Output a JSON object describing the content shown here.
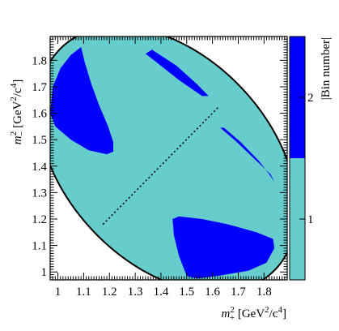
{
  "chart_data": {
    "type": "heatmap",
    "title": "",
    "xlabel": "m_{+}^{2} [GeV^{2}/c^{4}]",
    "ylabel": "m_{-}^{2} [GeV^{2}/c^{4}]",
    "xlabel_parts": {
      "base": "m",
      "sup": "2",
      "sub": "+",
      "units": "[GeV",
      "units_sup": "2",
      "units_tail": "/c",
      "units_sup2": "4",
      "units_end": "]"
    },
    "ylabel_parts": {
      "base": "m",
      "sup": "2",
      "sub": "−",
      "units": "[GeV",
      "units_sup": "2",
      "units_tail": "/c",
      "units_sup2": "4",
      "units_end": "]"
    },
    "xlim": [
      0.97,
      1.89
    ],
    "ylim": [
      0.97,
      1.89
    ],
    "xticks": [
      1,
      1.1,
      1.2,
      1.3,
      1.4,
      1.5,
      1.6,
      1.7,
      1.8
    ],
    "yticks": [
      1,
      1.1,
      1.2,
      1.3,
      1.4,
      1.5,
      1.6,
      1.7,
      1.8
    ],
    "xtick_labels": [
      "1",
      "1.1",
      "1.2",
      "1.3",
      "1.4",
      "1.5",
      "1.6",
      "1.7",
      "1.8"
    ],
    "ytick_labels": [
      "1",
      "1.1",
      "1.2",
      "1.3",
      "1.4",
      "1.5",
      "1.6",
      "1.7",
      "1.8"
    ],
    "colorbar": {
      "title": "|Bin number|",
      "range": [
        0.5,
        2.5
      ],
      "ticks": [
        1,
        2
      ],
      "tick_labels": [
        "1",
        "2"
      ],
      "colors": {
        "1": "#66cccc",
        "2": "#0000ff"
      },
      "split_value": 1.5
    },
    "boundary": {
      "center": [
        1.425,
        1.425
      ],
      "major_direction": [
        1,
        -1
      ],
      "minor_direction": [
        1,
        1
      ],
      "major_half_length": 0.59,
      "minor_half_length": 0.395
    },
    "divider_line": {
      "points": [
        [
          1.175,
          1.18
        ],
        [
          1.625,
          1.625
        ]
      ],
      "style": "dotted"
    },
    "bin2_regions": [
      {
        "name": "upper-left",
        "points": [
          [
            1.09,
            1.85
          ],
          [
            1.105,
            1.79
          ],
          [
            1.13,
            1.71
          ],
          [
            1.16,
            1.63
          ],
          [
            1.195,
            1.55
          ],
          [
            1.215,
            1.49
          ],
          [
            1.215,
            1.455
          ],
          [
            1.19,
            1.445
          ],
          [
            1.12,
            1.46
          ],
          [
            1.05,
            1.5
          ],
          [
            0.99,
            1.55
          ],
          [
            0.97,
            1.6
          ],
          [
            0.98,
            1.7
          ],
          [
            1.01,
            1.77
          ],
          [
            1.05,
            1.82
          ]
        ]
      },
      {
        "name": "top-band",
        "points": [
          [
            1.365,
            1.84
          ],
          [
            1.46,
            1.78
          ],
          [
            1.54,
            1.71
          ],
          [
            1.585,
            1.665
          ],
          [
            1.56,
            1.665
          ],
          [
            1.47,
            1.725
          ],
          [
            1.38,
            1.795
          ],
          [
            1.34,
            1.825
          ]
        ]
      },
      {
        "name": "right-band",
        "points": [
          [
            1.645,
            1.545
          ],
          [
            1.71,
            1.49
          ],
          [
            1.78,
            1.42
          ],
          [
            1.82,
            1.37
          ],
          [
            1.84,
            1.34
          ],
          [
            1.825,
            1.37
          ],
          [
            1.76,
            1.43
          ],
          [
            1.69,
            1.495
          ],
          [
            1.63,
            1.545
          ]
        ]
      },
      {
        "name": "lower-right",
        "points": [
          [
            1.445,
            1.2
          ],
          [
            1.47,
            1.21
          ],
          [
            1.56,
            1.2
          ],
          [
            1.66,
            1.18
          ],
          [
            1.77,
            1.15
          ],
          [
            1.835,
            1.125
          ],
          [
            1.84,
            1.09
          ],
          [
            1.81,
            1.035
          ],
          [
            1.74,
            1.005
          ],
          [
            1.62,
            0.985
          ],
          [
            1.54,
            0.975
          ],
          [
            1.5,
            0.985
          ],
          [
            1.47,
            1.06
          ],
          [
            1.45,
            1.14
          ]
        ]
      }
    ]
  }
}
